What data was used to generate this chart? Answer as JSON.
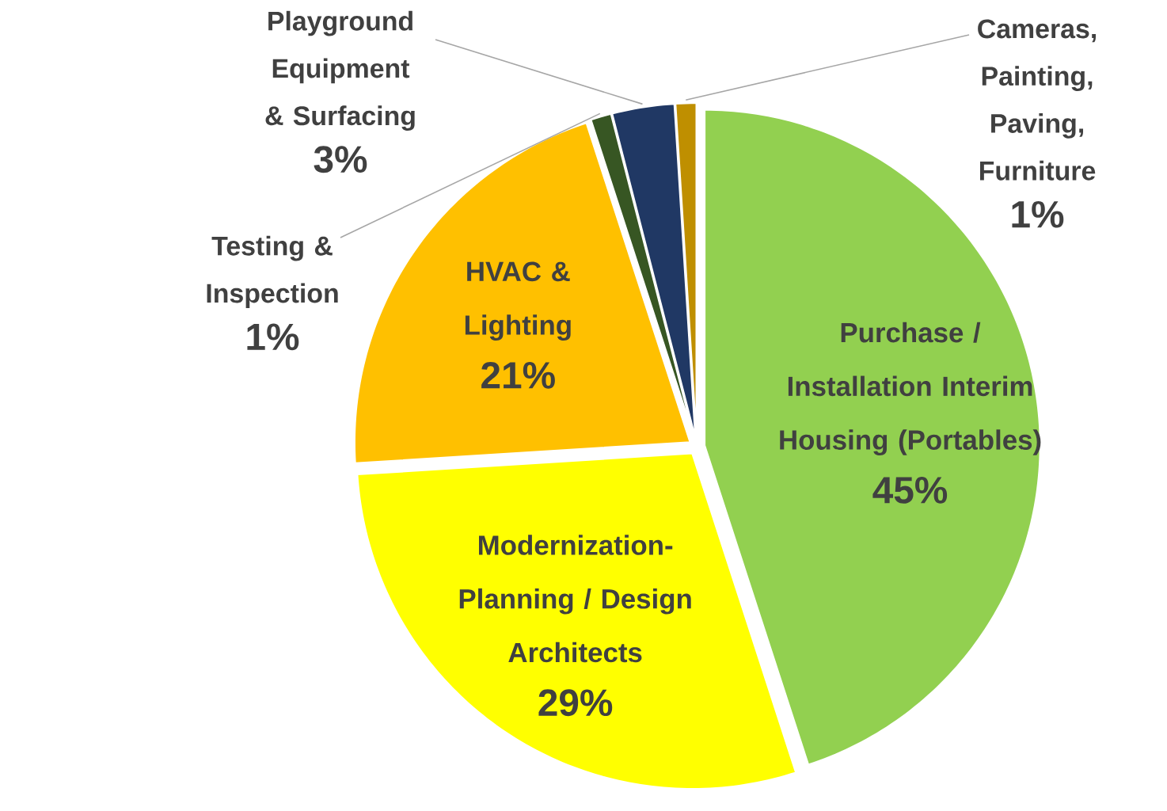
{
  "chart_data": {
    "type": "pie",
    "categories": [
      "Purchase / Installation Interim Housing (Portables)",
      "Modernization-Planning / Design Architects",
      "HVAC & Lighting",
      "Testing & Inspection",
      "Playground Equipment & Surfacing",
      "Cameras, Painting, Paving, Furniture"
    ],
    "values": [
      45,
      29,
      21,
      1,
      3,
      1
    ],
    "value_labels": [
      "45%",
      "29%",
      "21%",
      "1%",
      "3%",
      "1%"
    ],
    "colors": [
      "#92d050",
      "#ffff00",
      "#ffc000",
      "#375623",
      "#203864",
      "#bf8f00"
    ]
  }
}
